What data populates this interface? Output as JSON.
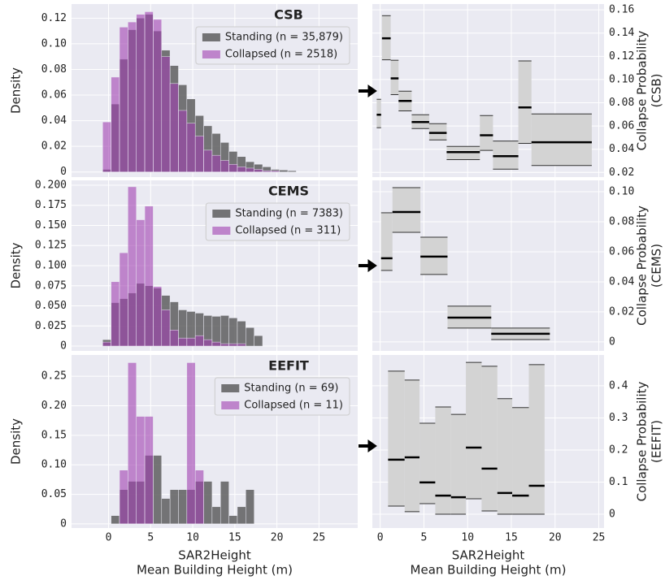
{
  "chart_data": [
    {
      "type": "histogram",
      "title": "CSB",
      "ylabel": "Density",
      "bins": [
        -0.7,
        0.3,
        1.3,
        2.3,
        3.3,
        4.3,
        5.3,
        6.3,
        7.3,
        8.3,
        9.3,
        10.3,
        11.3,
        12.3,
        13.3,
        14.3,
        15.3,
        16.3,
        17.3,
        18.3,
        19.3,
        20.3,
        21.3,
        22.3
      ],
      "series": [
        {
          "name": "Standing (n = 35,879)",
          "color": "#555555",
          "values": [
            0.002,
            0.053,
            0.088,
            0.111,
            0.12,
            0.123,
            0.11,
            0.095,
            0.083,
            0.068,
            0.057,
            0.044,
            0.036,
            0.03,
            0.023,
            0.016,
            0.012,
            0.008,
            0.006,
            0.004,
            0.002,
            0.0015,
            0.001
          ]
        },
        {
          "name": "Collapsed (n = 2518)",
          "color": "#a040b0",
          "values": [
            0.039,
            0.074,
            0.113,
            0.117,
            0.123,
            0.125,
            0.119,
            0.09,
            0.069,
            0.048,
            0.038,
            0.028,
            0.017,
            0.013,
            0.009,
            0.006,
            0.004,
            0.003,
            0.002,
            0.001,
            0.001,
            0,
            0
          ]
        }
      ],
      "xlim": [
        -4.4,
        29.6
      ],
      "xticks": [
        0,
        5,
        10,
        15,
        20,
        25
      ],
      "ylim": [
        -0.004,
        0.131
      ],
      "yticks": [
        0,
        0.02,
        0.04,
        0.06,
        0.08,
        {
          "value": 0.1,
          "label": "0.10"
        },
        0.12
      ],
      "grid": true,
      "legend": "upper right"
    },
    {
      "type": "interval",
      "ylabel_lines": [
        "Collapse Probability",
        "(CSB)"
      ],
      "color": "#d3d3d3",
      "intervals": [
        {
          "x": [
            -0.4,
            0.1
          ],
          "low": 0.0585,
          "median": 0.0697,
          "high": 0.083
        },
        {
          "x": [
            0.2,
            1.2
          ],
          "low": 0.117,
          "median": 0.1355,
          "high": 0.155
        },
        {
          "x": [
            1.2,
            2.1
          ],
          "low": 0.087,
          "median": 0.101,
          "high": 0.1166
        },
        {
          "x": [
            2.1,
            3.6
          ],
          "low": 0.073,
          "median": 0.0816,
          "high": 0.09
        },
        {
          "x": [
            3.6,
            5.6
          ],
          "low": 0.0578,
          "median": 0.0634,
          "high": 0.0697
        },
        {
          "x": [
            5.6,
            7.6
          ],
          "low": 0.048,
          "median": 0.054,
          "high": 0.062
        },
        {
          "x": [
            7.6,
            11.4
          ],
          "low": 0.031,
          "median": 0.0375,
          "high": 0.0424
        },
        {
          "x": [
            11.4,
            12.9
          ],
          "low": 0.039,
          "median": 0.052,
          "high": 0.069
        },
        {
          "x": [
            12.9,
            15.8
          ],
          "low": 0.0228,
          "median": 0.034,
          "high": 0.047
        },
        {
          "x": [
            15.8,
            17.3
          ],
          "low": 0.045,
          "median": 0.076,
          "high": 0.116
        },
        {
          "x": [
            17.3,
            24.2
          ],
          "low": 0.026,
          "median": 0.046,
          "high": 0.0704
        }
      ],
      "xlim": [
        -0.9,
        25.6
      ],
      "xticks": [
        0,
        5,
        10,
        15,
        20,
        25
      ],
      "ylim": [
        0.016,
        0.165
      ],
      "yticks": [
        0.02,
        0.04,
        0.06,
        0.08,
        {
          "value": 0.1,
          "label": "0.10"
        },
        0.12,
        0.14,
        0.16
      ],
      "grid": true
    },
    {
      "type": "histogram",
      "title": "CEMS",
      "ylabel": "Density",
      "bins": [
        -0.7,
        0.3,
        1.3,
        2.3,
        3.3,
        4.3,
        5.3,
        6.3,
        7.3,
        8.3,
        9.3,
        10.3,
        11.3,
        12.3,
        13.3,
        14.3,
        15.3,
        16.3,
        17.3,
        18.3
      ],
      "series": [
        {
          "name": "Standing (n = 7383)",
          "color": "#555555",
          "values": [
            0.008,
            0.054,
            0.059,
            0.066,
            0.078,
            0.075,
            0.072,
            0.063,
            0.055,
            0.045,
            0.043,
            0.041,
            0.038,
            0.037,
            0.038,
            0.035,
            0.031,
            0.023,
            0.013
          ]
        },
        {
          "name": "Collapsed (n = 311)",
          "color": "#a040b0",
          "values": [
            0.005,
            0.08,
            0.116,
            0.198,
            0.157,
            0.174,
            0.074,
            0.045,
            0.02,
            0.01,
            0.01,
            0.013,
            0.008,
            0.005,
            0.003,
            0.003,
            0.003,
            0,
            0
          ]
        }
      ],
      "xlim": [
        -4.4,
        29.6
      ],
      "xticks": [
        0,
        5,
        10,
        15,
        20,
        25
      ],
      "ylim": [
        -0.006,
        0.206
      ],
      "yticks": [
        0,
        0.025,
        {
          "value": 0.05,
          "label": "0.050"
        },
        0.075,
        {
          "value": 0.1,
          "label": "0.100"
        },
        0.125,
        {
          "value": 0.15,
          "label": "0.150"
        },
        0.175,
        {
          "value": 0.2,
          "label": "0.200"
        }
      ],
      "grid": true,
      "legend": "upper right"
    },
    {
      "type": "interval",
      "ylabel_lines": [
        "Collapse Probability",
        "(CEMS)"
      ],
      "color": "#d3d3d3",
      "intervals": [
        {
          "x": [
            0.1,
            1.4
          ],
          "low": 0.0476,
          "median": 0.0557,
          "high": 0.086
        },
        {
          "x": [
            1.4,
            4.6
          ],
          "low": 0.073,
          "median": 0.0865,
          "high": 0.1027
        },
        {
          "x": [
            4.6,
            7.7
          ],
          "low": 0.0449,
          "median": 0.0568,
          "high": 0.0697
        },
        {
          "x": [
            7.7,
            12.7
          ],
          "low": 0.0092,
          "median": 0.0162,
          "high": 0.0238
        },
        {
          "x": [
            12.7,
            19.4
          ],
          "low": 0.0016,
          "median": 0.0054,
          "high": 0.0092
        }
      ],
      "xlim": [
        -0.9,
        25.6
      ],
      "xticks": [
        0,
        5,
        10,
        15,
        20,
        25
      ],
      "ylim": [
        -0.006,
        0.1076
      ],
      "yticks": [
        0,
        0.02,
        0.04,
        0.06,
        0.08,
        {
          "value": 0.1,
          "label": "0.10"
        }
      ],
      "grid": true
    },
    {
      "type": "histogram",
      "title": "EEFIT",
      "ylabel": "Density",
      "xlabel_lines": [
        "SAR2Height",
        "Mean Building Height (m)"
      ],
      "bins": [
        0.3,
        1.3,
        2.3,
        3.3,
        4.3,
        5.3,
        6.3,
        7.3,
        8.3,
        9.3,
        10.3,
        11.3,
        12.3,
        13.3,
        14.3,
        15.3,
        16.3,
        17.3
      ],
      "series": [
        {
          "name": "Standing (n = 69)",
          "color": "#555555",
          "values": [
            0.014,
            0.058,
            0.072,
            0.072,
            0.116,
            0.116,
            0.043,
            0.058,
            0.058,
            0.058,
            0.072,
            0.072,
            0.029,
            0.072,
            0.014,
            0.029,
            0.058
          ]
        },
        {
          "name": "Collapsed (n = 11)",
          "color": "#a040b0",
          "values": [
            0,
            0.091,
            0.273,
            0.182,
            0.182,
            0,
            0,
            0,
            0,
            0.273,
            0.091,
            0,
            0,
            0,
            0,
            0,
            0
          ]
        }
      ],
      "xlim": [
        -4.4,
        29.6
      ],
      "xticks": [
        0,
        5,
        10,
        15,
        20,
        25
      ],
      "ylim": [
        -0.007,
        0.286
      ],
      "yticks": [
        0,
        0.05,
        {
          "value": 0.1,
          "label": "0.10"
        },
        0.15,
        {
          "value": 0.2,
          "label": "0.20"
        },
        0.25
      ],
      "grid": true,
      "legend": "upper right"
    },
    {
      "type": "interval",
      "ylabel_lines": [
        "Collapse Probability",
        "(EEFIT)"
      ],
      "xlabel_lines": [
        "SAR2Height",
        "Mean Building Height (m)"
      ],
      "color": "#d3d3d3",
      "intervals": [
        {
          "x": [
            0.9,
            2.8
          ],
          "low": 0.0253,
          "median": 0.17,
          "high": 0.4456
        },
        {
          "x": [
            2.8,
            4.5
          ],
          "low": 0.008,
          "median": 0.177,
          "high": 0.418
        },
        {
          "x": [
            4.5,
            6.3
          ],
          "low": 0.033,
          "median": 0.099,
          "high": 0.2835
        },
        {
          "x": [
            6.3,
            8.1
          ],
          "low": 0,
          "median": 0.058,
          "high": 0.334
        },
        {
          "x": [
            8.1,
            9.8
          ],
          "low": 0,
          "median": 0.053,
          "high": 0.311
        },
        {
          "x": [
            9.8,
            11.6
          ],
          "low": 0.048,
          "median": 0.2076,
          "high": 0.473
        },
        {
          "x": [
            11.6,
            13.4
          ],
          "low": 0.01,
          "median": 0.142,
          "high": 0.461
        },
        {
          "x": [
            13.4,
            15.1
          ],
          "low": 0,
          "median": 0.066,
          "high": 0.36
        },
        {
          "x": [
            15.1,
            17.0
          ],
          "low": 0,
          "median": 0.058,
          "high": 0.332
        },
        {
          "x": [
            17.0,
            18.8
          ],
          "low": 0,
          "median": 0.0886,
          "high": 0.466
        }
      ],
      "xlim": [
        -0.9,
        25.6
      ],
      "xticks": [
        0,
        5,
        10,
        15,
        20,
        25
      ],
      "ylim": [
        -0.043,
        0.496
      ],
      "yticks": [
        0,
        0.1,
        0.2,
        0.3,
        0.4
      ],
      "grid": true
    }
  ]
}
